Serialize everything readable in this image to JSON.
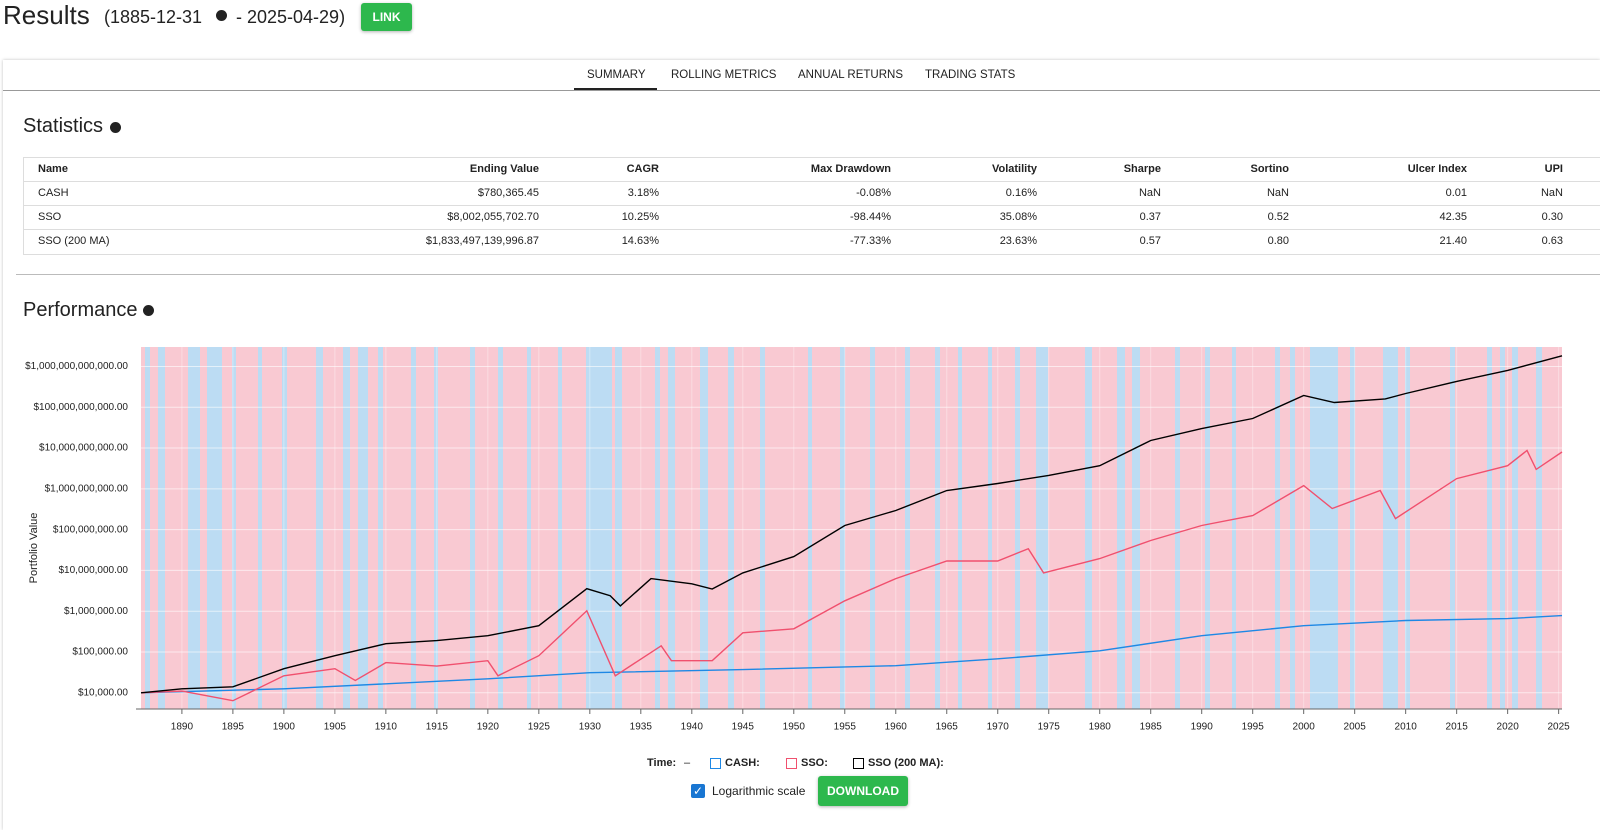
{
  "header": {
    "title": "Results",
    "start": "(1885-12-31",
    "end": "- 2025-04-29)",
    "link_button": "LINK"
  },
  "tabs": [
    "SUMMARY",
    "ROLLING METRICS",
    "ANNUAL RETURNS",
    "TRADING STATS"
  ],
  "statistics": {
    "title": "Statistics",
    "columns": [
      "Name",
      "Ending Value",
      "CAGR",
      "Max Drawdown",
      "Volatility",
      "Sharpe",
      "Sortino",
      "Ulcer Index",
      "UPI"
    ],
    "rows": [
      [
        "CASH",
        "$780,365.45",
        "3.18%",
        "-0.08%",
        "0.16%",
        "NaN",
        "NaN",
        "0.01",
        "NaN"
      ],
      [
        "SSO",
        "$8,002,055,702.70",
        "10.25%",
        "-98.44%",
        "35.08%",
        "0.37",
        "0.52",
        "42.35",
        "0.30"
      ],
      [
        "SSO (200 MA)",
        "$1,833,497,139,996.87",
        "14.63%",
        "-77.33%",
        "23.63%",
        "0.57",
        "0.80",
        "21.40",
        "0.63"
      ]
    ]
  },
  "performance_title": "Performance",
  "chart_data": {
    "type": "line",
    "y_label": "Portfolio Value",
    "log_scale": true,
    "grid": true,
    "xlim": [
      1885.99,
      2025.33
    ],
    "xticks": [
      1890,
      1895,
      1900,
      1905,
      1910,
      1915,
      1920,
      1925,
      1930,
      1935,
      1940,
      1945,
      1950,
      1955,
      1960,
      1965,
      1970,
      1975,
      1980,
      1985,
      1990,
      1995,
      2000,
      2005,
      2010,
      2015,
      2020,
      2025
    ],
    "ylim": [
      4000,
      3000000000000
    ],
    "yticks": [
      {
        "value": 10000,
        "label": "$10,000.00"
      },
      {
        "value": 100000,
        "label": "$100,000.00"
      },
      {
        "value": 1000000,
        "label": "$1,000,000.00"
      },
      {
        "value": 10000000,
        "label": "$10,000,000.00"
      },
      {
        "value": 100000000,
        "label": "$100,000,000.00"
      },
      {
        "value": 1000000000,
        "label": "$1,000,000,000.00"
      },
      {
        "value": 10000000000,
        "label": "$10,000,000,000.00"
      },
      {
        "value": 100000000000,
        "label": "$100,000,000,000.00"
      },
      {
        "value": 1000000000000,
        "label": "$1,000,000,000,000.00"
      }
    ],
    "series": [
      {
        "name": "CASH:",
        "color": "#1e88e5",
        "x": [
          1885.99,
          1900,
          1920,
          1930,
          1945,
          1960,
          1970,
          1980,
          1990,
          2000,
          2010,
          2020,
          2025.33
        ],
        "values": [
          10000,
          12500,
          22000,
          31000,
          37000,
          46000,
          68000,
          107000,
          250000,
          440000,
          590000,
          660000,
          780365
        ]
      },
      {
        "name": "SSO:",
        "color": "#f0506e",
        "x": [
          1885.99,
          1890,
          1895,
          1900,
          1905,
          1907,
          1910,
          1915,
          1920,
          1921,
          1925,
          1929.7,
          1932.5,
          1937,
          1938,
          1942,
          1945,
          1950,
          1955,
          1960,
          1965,
          1970,
          1973,
          1974.5,
          1980,
          1985,
          1990,
          1995,
          2000,
          2002.8,
          2007.5,
          2009,
          2015,
          2020,
          2021.9,
          2022.8,
          2025.33
        ],
        "values": [
          10000,
          11000,
          6400,
          26000,
          39000,
          20000,
          55000,
          45000,
          61000,
          26000,
          81000,
          1020000,
          26000,
          142000,
          61000,
          61000,
          295000,
          371000,
          1800000,
          6300000,
          17000000,
          17000000,
          34000000,
          8700000,
          19500000,
          54000000,
          126000000,
          220000000,
          1200000000,
          330000000,
          910000000,
          186000000,
          1780000000,
          3700000000,
          8700000000,
          3000000000,
          8000000000
        ]
      },
      {
        "name": "SSO (200 MA):",
        "color": "#000000",
        "x": [
          1885.99,
          1890,
          1895,
          1900,
          1905,
          1910,
          1915,
          1920,
          1925,
          1929.7,
          1932,
          1933,
          1936,
          1940,
          1942,
          1945,
          1950,
          1955,
          1960,
          1965,
          1970,
          1975,
          1980,
          1985,
          1990,
          1995,
          2000,
          2003,
          2008,
          2010,
          2015,
          2020,
          2025.33
        ],
        "values": [
          10000,
          12500,
          14000,
          39000,
          81000,
          160000,
          190000,
          250000,
          440000,
          3550000,
          2400000,
          1350000,
          6300000,
          4700000,
          3500000,
          8700000,
          21800000,
          126000000,
          295000000,
          910000000,
          1350000000,
          2130000000,
          3700000000,
          15300000000,
          30000000000,
          53000000000,
          194000000000,
          131000000000,
          160000000000,
          217000000000,
          430000000000,
          800000000000,
          1830000000000
        ]
      }
    ]
  },
  "legend": {
    "time_label": "Time:",
    "time_value": "–"
  },
  "log_checkbox": "Logarithmic scale",
  "download_button": "DOWNLOAD"
}
